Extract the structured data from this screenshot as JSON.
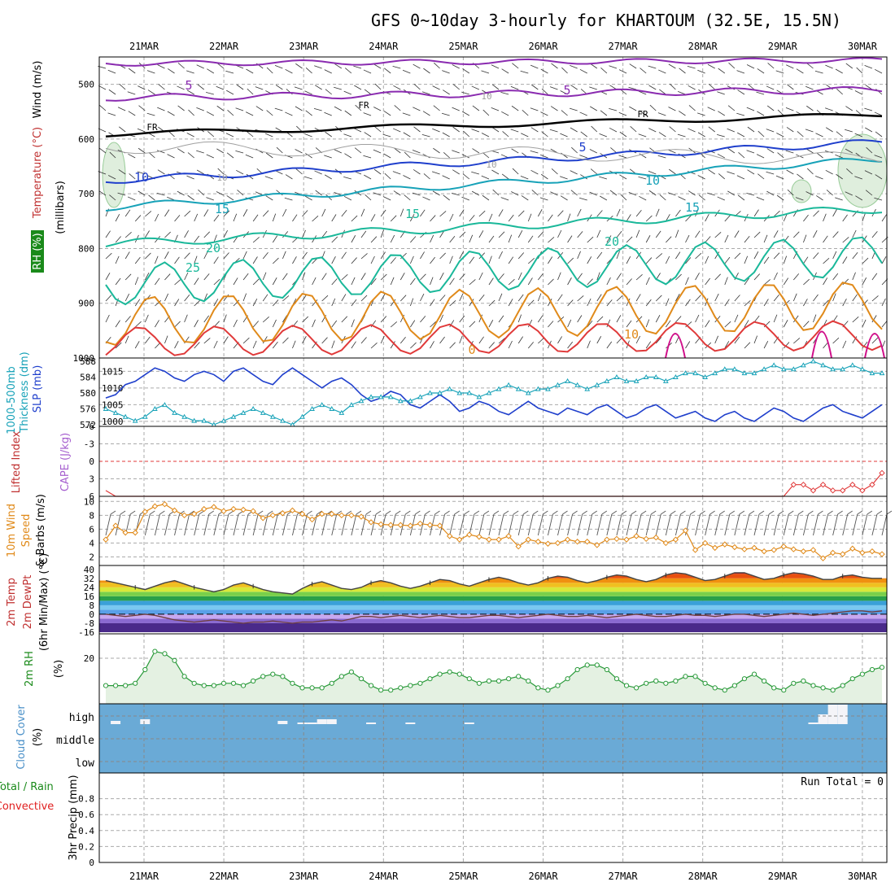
{
  "title": "GFS 0~10day 3-hourly for KHARTOUM (32.5E, 15.5N)",
  "dates": [
    "21MAR",
    "22MAR",
    "23MAR",
    "24MAR",
    "25MAR",
    "26MAR",
    "27MAR",
    "28MAR",
    "29MAR",
    "30MAR"
  ],
  "panels": {
    "upper_air": {
      "label_lines": [
        {
          "text": "Wind (m/s)",
          "color": "#000000"
        },
        {
          "text": "Temperature (°C)",
          "color": "#c03030"
        },
        {
          "text": "(millibars)",
          "color": "#000000"
        },
        {
          "text": "RH (%)",
          "color": "#1a8a1a"
        }
      ],
      "pressure_ticks": [
        "500",
        "600",
        "700",
        "800",
        "900",
        "1000"
      ],
      "contour_labels": [
        "5",
        "5",
        "FR",
        "FR",
        "FR",
        "5",
        "10",
        "10",
        "15",
        "15",
        "15",
        "20",
        "20",
        "25",
        "0",
        "10",
        "10",
        "10",
        "10"
      ]
    },
    "thickness_slp": {
      "label_lines": [
        {
          "text": "1000-500mb",
          "color": "#17a2b8"
        },
        {
          "text": "Thickness (dm)",
          "color": "#17a2b8"
        },
        {
          "text": "SLP (mb)",
          "color": "#1f3fcc"
        }
      ],
      "left_ticks": [
        "588",
        "584",
        "580",
        "576",
        "572"
      ],
      "right_ticks": [
        "1015",
        "1010",
        "1005",
        "1000"
      ]
    },
    "cape_li": {
      "label_lines": [
        {
          "text": "Lifted Index",
          "color": "#c03030"
        },
        {
          "text": "CAPE (J/kg)",
          "color": "#a65fcf"
        }
      ],
      "ticks": [
        "-6",
        "-3",
        "0",
        "3",
        "6"
      ]
    },
    "wind10m": {
      "label_lines": [
        {
          "text": "10m Wind",
          "color": "#e08a1a"
        },
        {
          "text": "Speed",
          "color": "#e08a1a"
        },
        {
          "text": "& Barbs (m/s)",
          "color": "#000000"
        }
      ],
      "ticks": [
        "10",
        "8",
        "6",
        "4",
        "2"
      ]
    },
    "temp": {
      "label_lines": [
        {
          "text": "2m Temp",
          "color": "#c03030"
        },
        {
          "text": "2m DewPt",
          "color": "#c03030"
        },
        {
          "text": "(6hr Min/Max) (°C)",
          "color": "#000000"
        }
      ],
      "ticks": [
        "40",
        "32",
        "24",
        "16",
        "8",
        "0",
        "-8",
        "-16"
      ]
    },
    "rh": {
      "label_lines": [
        {
          "text": "2m RH",
          "color": "#1a8a1a"
        },
        {
          "text": "(%)",
          "color": "#000000"
        }
      ],
      "ticks": [
        "20"
      ]
    },
    "cloud": {
      "label_lines": [
        {
          "text": "Cloud Cover",
          "color": "#4a90c8"
        },
        {
          "text": "(%)",
          "color": "#000000"
        }
      ],
      "levels": [
        "high",
        "middle",
        "low"
      ]
    },
    "precip": {
      "label_lines": [
        {
          "text": "Total / Rain",
          "color": "#1a8a1a"
        },
        {
          "text": "Convective",
          "color": "#e02020"
        },
        {
          "text": "3hr Precip (mm)",
          "color": "#000000"
        }
      ],
      "ticks": [
        "0.8",
        "0.6",
        "0.4",
        "0.2",
        "0"
      ],
      "run_total": "Run Total = 0"
    }
  },
  "colors": {
    "purple": "#8a2bb0",
    "black": "#000000",
    "blue": "#1f3fcc",
    "cyan": "#17a2b8",
    "teal": "#1ab89a",
    "orange": "#e08a1a",
    "red": "#e03a3a",
    "magenta": "#d0108a",
    "grey": "#a0a0a0",
    "rhfill": "#dfeedd",
    "cloudblue": "#6aaad6",
    "wind10": "#e08a1a",
    "barb": "#555555"
  },
  "chart_data": {
    "type": "line",
    "x_start": "21MAR",
    "steps": 80,
    "series": [
      {
        "name": "SLP (mb)",
        "values": [
          1007,
          1008,
          1011,
          1012,
          1014,
          1016,
          1015,
          1013,
          1012,
          1014,
          1015,
          1014,
          1012,
          1015,
          1016,
          1014,
          1012,
          1011,
          1014,
          1016,
          1014,
          1012,
          1010,
          1012,
          1013,
          1011,
          1008,
          1006,
          1007,
          1009,
          1008,
          1005,
          1004,
          1006,
          1008,
          1006,
          1003,
          1004,
          1006,
          1005,
          1003,
          1002,
          1004,
          1006,
          1004,
          1003,
          1002,
          1004,
          1003,
          1002,
          1004,
          1005,
          1003,
          1001,
          1002,
          1004,
          1005,
          1003,
          1001,
          1002,
          1003,
          1001,
          1000,
          1002,
          1003,
          1001,
          1000,
          1002,
          1004,
          1003,
          1001,
          1000,
          1002,
          1004,
          1005,
          1003,
          1002,
          1001,
          1003,
          1005
        ]
      },
      {
        "name": "1000-500mb Thickness (dm)",
        "values": [
          576,
          575,
          574,
          573,
          574,
          576,
          577,
          575,
          574,
          573,
          573,
          572,
          573,
          574,
          575,
          576,
          575,
          574,
          573,
          572,
          574,
          576,
          577,
          576,
          575,
          577,
          578,
          579,
          579,
          579,
          578,
          578,
          579,
          580,
          580,
          581,
          580,
          580,
          579,
          580,
          581,
          582,
          581,
          580,
          581,
          581,
          582,
          583,
          582,
          581,
          582,
          583,
          584,
          583,
          583,
          584,
          584,
          583,
          584,
          585,
          585,
          584,
          585,
          586,
          586,
          585,
          585,
          586,
          587,
          586,
          586,
          587,
          588,
          587,
          586,
          586,
          587,
          586,
          585,
          585
        ]
      },
      {
        "name": "Lifted Index",
        "values": [
          5,
          6,
          6,
          6,
          6,
          6,
          6,
          6,
          6,
          6,
          6,
          6,
          6,
          6,
          6,
          6,
          6,
          6,
          6,
          6,
          6,
          6,
          6,
          6,
          6,
          6,
          6,
          6,
          6,
          6,
          6,
          6,
          6,
          6,
          6,
          6,
          6,
          6,
          6,
          6,
          6,
          6,
          6,
          6,
          6,
          6,
          6,
          6,
          6,
          6,
          6,
          6,
          6,
          6,
          6,
          6,
          6,
          6,
          6,
          6,
          6,
          6,
          6,
          6,
          6,
          6,
          6,
          6,
          6,
          6,
          4,
          4,
          5,
          4,
          5,
          5,
          4,
          5,
          4,
          2
        ]
      },
      {
        "name": "10m Wind Speed",
        "values": [
          4.5,
          6.5,
          5.5,
          5.5,
          8.5,
          9.3,
          9.6,
          8.7,
          8.0,
          8.2,
          8.9,
          9.2,
          8.6,
          8.9,
          8.8,
          8.6,
          7.6,
          8.0,
          8.3,
          8.7,
          8.2,
          7.4,
          8.2,
          8.2,
          8.0,
          8.0,
          7.8,
          7.0,
          6.7,
          6.6,
          6.6,
          6.5,
          6.8,
          6.6,
          6.5,
          5.0,
          4.5,
          5.2,
          4.9,
          4.5,
          4.5,
          5.0,
          3.5,
          4.5,
          4.2,
          3.9,
          4.0,
          4.5,
          4.2,
          4.2,
          3.7,
          4.5,
          4.6,
          4.5,
          5.0,
          4.6,
          4.8,
          4.0,
          4.5,
          5.8,
          3.0,
          4.0,
          3.3,
          3.8,
          3.4,
          3.1,
          3.3,
          2.8,
          3.0,
          3.5,
          3.1,
          2.8,
          3.0,
          1.8,
          2.6,
          2.4,
          3.2,
          2.6,
          2.8,
          2.4
        ]
      },
      {
        "name": "2m Temp",
        "values": [
          30,
          28,
          26,
          24,
          22,
          25,
          28,
          30,
          27,
          24,
          22,
          20,
          22,
          26,
          28,
          25,
          22,
          20,
          19,
          18,
          23,
          27,
          29,
          26,
          23,
          22,
          24,
          28,
          30,
          28,
          25,
          23,
          25,
          28,
          31,
          30,
          27,
          25,
          28,
          31,
          33,
          31,
          28,
          26,
          28,
          32,
          34,
          33,
          30,
          28,
          30,
          33,
          35,
          34,
          31,
          29,
          31,
          35,
          37,
          36,
          33,
          30,
          31,
          34,
          37,
          37,
          34,
          31,
          32,
          35,
          37,
          36,
          34,
          31,
          31,
          34,
          35,
          33,
          32,
          32
        ]
      },
      {
        "name": "2m DewPt",
        "values": [
          0,
          -1,
          -2,
          -1,
          0,
          -1,
          -3,
          -5,
          -6,
          -7,
          -6,
          -5,
          -6,
          -7,
          -8,
          -7,
          -7,
          -6,
          -7,
          -8,
          -7,
          -7,
          -6,
          -5,
          -6,
          -4,
          -2,
          -2,
          -3,
          -2,
          -1,
          -2,
          -3,
          -2,
          -1,
          -2,
          -3,
          -3,
          -2,
          -1,
          -1,
          -2,
          -3,
          -2,
          -1,
          0,
          -1,
          -2,
          -2,
          -1,
          -2,
          -3,
          -2,
          -1,
          0,
          -1,
          -2,
          -2,
          -1,
          0,
          -1,
          -1,
          -2,
          -1,
          0,
          0,
          -1,
          -2,
          -1,
          0,
          1,
          0,
          -1,
          0,
          1,
          2,
          3,
          3,
          2,
          3
        ]
      },
      {
        "name": "2m RH (%)",
        "values": [
          8,
          8,
          8,
          9,
          15,
          23,
          22,
          19,
          12,
          9,
          8,
          8,
          9,
          9,
          8,
          10,
          12,
          13,
          12,
          9,
          7,
          7,
          7,
          9,
          12,
          14,
          11,
          8,
          6,
          6,
          7,
          8,
          9,
          11,
          13,
          14,
          13,
          11,
          9,
          10,
          10,
          11,
          12,
          10,
          7,
          6,
          8,
          11,
          15,
          17,
          17,
          15,
          11,
          8,
          7,
          9,
          10,
          9,
          10,
          12,
          12,
          9,
          7,
          6,
          8,
          11,
          13,
          10,
          7,
          6,
          9,
          10,
          8,
          7,
          6,
          8,
          11,
          13,
          15,
          16
        ]
      }
    ],
    "cloud_high_cover": [
      0,
      10,
      0,
      0,
      15,
      0,
      0,
      0,
      0,
      0,
      0,
      0,
      0,
      0,
      0,
      0,
      0,
      0,
      10,
      0,
      5,
      5,
      15,
      15,
      0,
      0,
      0,
      5,
      0,
      0,
      0,
      5,
      0,
      0,
      0,
      0,
      0,
      5,
      0,
      0,
      0,
      0,
      0,
      0,
      0,
      0,
      0,
      0,
      0,
      0,
      0,
      0,
      0,
      0,
      0,
      0,
      0,
      0,
      0,
      0,
      0,
      0,
      0,
      0,
      0,
      0,
      0,
      0,
      0,
      0,
      0,
      0,
      5,
      30,
      60,
      60,
      0,
      0,
      0,
      0
    ],
    "precip_total_mm": 0,
    "ylim": {
      "pressure": [
        450,
        1000
      ],
      "slp": [
        999,
        1018
      ],
      "thickness": [
        572,
        588
      ],
      "li": [
        -6,
        6
      ],
      "wind": [
        1,
        10.5
      ],
      "temp": [
        -16,
        42
      ],
      "rh": [
        0,
        30
      ]
    }
  }
}
